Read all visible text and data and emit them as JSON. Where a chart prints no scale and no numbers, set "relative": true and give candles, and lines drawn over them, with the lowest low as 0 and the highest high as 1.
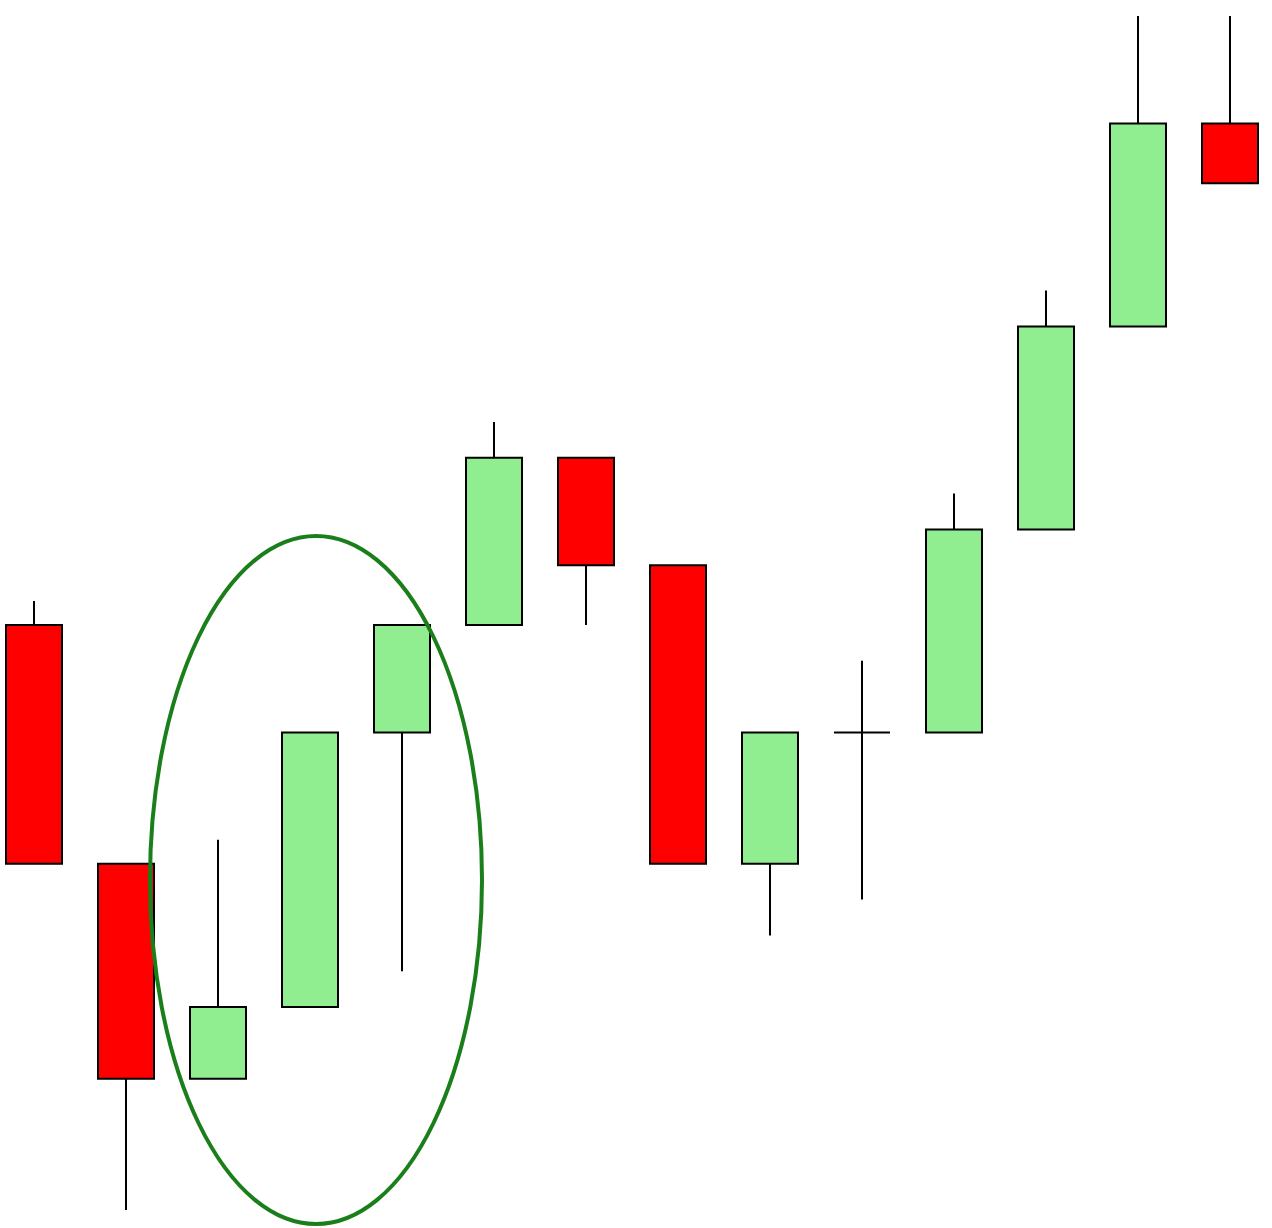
{
  "chart_data": {
    "type": "candlestick",
    "relative": true,
    "categories": [
      null,
      null,
      null,
      null,
      null,
      null,
      null,
      null,
      null,
      null,
      null,
      null,
      null,
      null
    ],
    "ohlc": [
      [
        0.49,
        0.51,
        0.29,
        0.29
      ],
      [
        0.29,
        0.29,
        0,
        0.11
      ],
      [
        0.11,
        0.31,
        0.11,
        0.17
      ],
      [
        0.17,
        0.4,
        0.17,
        0.4
      ],
      [
        0.4,
        0.49,
        0.2,
        0.49
      ],
      [
        0.49,
        0.66,
        0.49,
        0.63
      ],
      [
        0.63,
        0.63,
        0.49,
        0.54
      ],
      [
        0.54,
        0.54,
        0.29,
        0.29
      ],
      [
        0.29,
        0.4,
        0.23,
        0.4
      ],
      [
        0.4,
        0.46,
        0.26,
        0.4
      ],
      [
        0.4,
        0.6,
        0.4,
        0.57
      ],
      [
        0.57,
        0.77,
        0.57,
        0.74
      ],
      [
        0.74,
        1,
        0.74,
        0.91
      ],
      [
        0.91,
        1,
        0.86,
        0.86
      ]
    ],
    "colors": [
      "#ff0000",
      "#ff0000",
      "#90ee90",
      "#90ee90",
      "#90ee90",
      "#90ee90",
      "#ff0000",
      "#ff0000",
      "#90ee90",
      "#000000",
      "#90ee90",
      "#90ee90",
      "#90ee90",
      "#ff0000"
    ]
  }
}
